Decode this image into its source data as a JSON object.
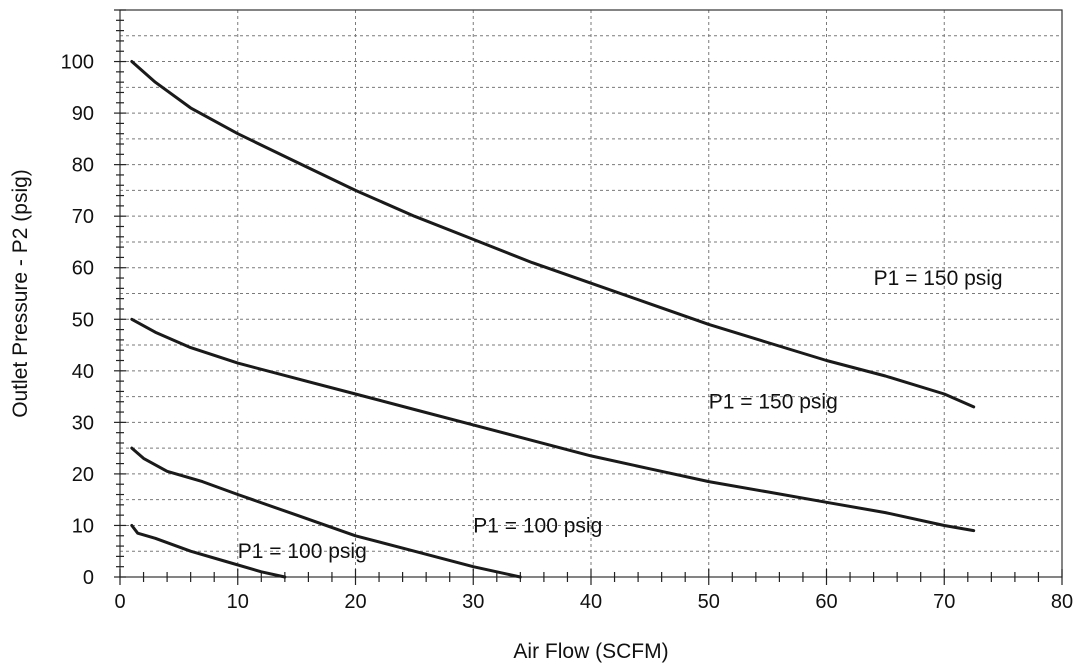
{
  "chart_data": {
    "type": "line",
    "title": "",
    "xlabel": "Air Flow (SCFM)",
    "ylabel": "Outlet Pressure - P2 (psig)",
    "xlim": [
      0,
      80
    ],
    "ylim": [
      0,
      110
    ],
    "x_ticks": [
      0,
      10,
      20,
      30,
      40,
      50,
      60,
      70,
      80
    ],
    "y_ticks": [
      0,
      10,
      20,
      30,
      40,
      50,
      60,
      70,
      80,
      90,
      100
    ],
    "grid": true,
    "legend": "none",
    "series": [
      {
        "name": "P1 = 150 psig",
        "label_at": [
          64,
          58
        ],
        "points": [
          [
            1,
            100
          ],
          [
            3,
            96
          ],
          [
            6,
            91
          ],
          [
            10,
            86
          ],
          [
            15,
            80.5
          ],
          [
            20,
            75
          ],
          [
            25,
            70
          ],
          [
            30,
            65.5
          ],
          [
            35,
            61
          ],
          [
            40,
            57
          ],
          [
            45,
            53
          ],
          [
            50,
            49
          ],
          [
            55,
            45.5
          ],
          [
            60,
            42
          ],
          [
            65,
            39
          ],
          [
            70,
            35.5
          ],
          [
            72.5,
            33
          ]
        ]
      },
      {
        "name": "P1 = 150 psig",
        "label_at": [
          50,
          34
        ],
        "points": [
          [
            1,
            50
          ],
          [
            3,
            47.5
          ],
          [
            6,
            44.5
          ],
          [
            10,
            41.5
          ],
          [
            15,
            38.5
          ],
          [
            20,
            35.5
          ],
          [
            25,
            32.5
          ],
          [
            30,
            29.5
          ],
          [
            35,
            26.5
          ],
          [
            40,
            23.5
          ],
          [
            45,
            21
          ],
          [
            50,
            18.5
          ],
          [
            55,
            16.5
          ],
          [
            60,
            14.5
          ],
          [
            65,
            12.5
          ],
          [
            70,
            10
          ],
          [
            72.5,
            9
          ]
        ]
      },
      {
        "name": "P1 = 100 psig",
        "label_at": [
          30,
          10
        ]
      },
      {
        "name": "P1 = 100 psig",
        "label_at": [
          10,
          5
        ]
      }
    ],
    "curves": [
      {
        "points": [
          [
            1,
            25
          ],
          [
            2,
            23
          ],
          [
            4,
            20.5
          ],
          [
            7,
            18.5
          ],
          [
            10,
            16
          ],
          [
            15,
            12
          ],
          [
            20,
            8
          ],
          [
            25,
            5
          ],
          [
            30,
            2
          ],
          [
            34,
            0
          ]
        ]
      },
      {
        "points": [
          [
            1,
            10
          ],
          [
            1.5,
            8.5
          ],
          [
            3,
            7.5
          ],
          [
            6,
            5
          ],
          [
            9,
            3
          ],
          [
            12,
            1
          ],
          [
            14,
            0
          ]
        ]
      }
    ]
  }
}
